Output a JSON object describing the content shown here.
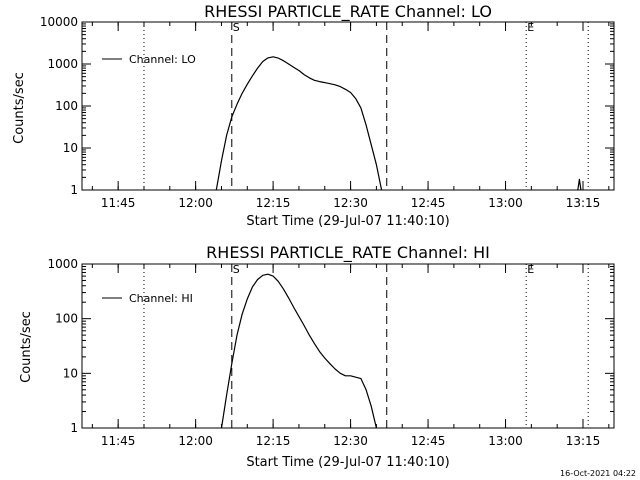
{
  "chart_data": [
    {
      "type": "line",
      "title": "RHESSI PARTICLE_RATE Channel: LO",
      "xlabel": "Start Time (29-Jul-07 11:40:10)",
      "ylabel": "Counts/sec",
      "yscale": "log",
      "ylim": [
        1,
        10000
      ],
      "xlim": [
        "11:38",
        "13:21"
      ],
      "x_ticks": [
        "11:45",
        "12:00",
        "12:15",
        "12:30",
        "12:45",
        "13:00",
        "13:15"
      ],
      "y_ticks": [
        "1",
        "10",
        "100",
        "1000",
        "10000"
      ],
      "legend": {
        "position": "top-left",
        "entries": [
          "Channel: LO"
        ]
      },
      "markers": [
        {
          "label": "S",
          "time": "12:07",
          "style": "dashed"
        },
        {
          "label": "",
          "time": "12:37",
          "style": "dashed"
        },
        {
          "label": "",
          "time": "11:50",
          "style": "dotted"
        },
        {
          "label": "E",
          "time": "13:04",
          "style": "dotted"
        },
        {
          "label": "",
          "time": "13:16",
          "style": "dotted"
        }
      ],
      "series": [
        {
          "name": "Channel: LO",
          "x": [
            "12:04",
            "12:05",
            "12:06",
            "12:07",
            "12:08",
            "12:09",
            "12:10",
            "12:11",
            "12:12",
            "12:13",
            "12:14",
            "12:15",
            "12:16",
            "12:17",
            "12:18",
            "12:19",
            "12:20",
            "12:21",
            "12:22",
            "12:23",
            "12:24",
            "12:25",
            "12:26",
            "12:27",
            "12:28",
            "12:29",
            "12:30",
            "12:31",
            "12:32",
            "12:33",
            "12:34",
            "12:35",
            "12:36"
          ],
          "y": [
            1,
            5,
            20,
            55,
            110,
            200,
            330,
            520,
            800,
            1150,
            1400,
            1480,
            1380,
            1200,
            1000,
            830,
            700,
            560,
            470,
            410,
            380,
            360,
            340,
            320,
            290,
            250,
            210,
            150,
            90,
            35,
            12,
            4,
            1
          ]
        },
        {
          "name": "",
          "x": [
            "13:14",
            "13:14.3",
            "13:14.6"
          ],
          "y": [
            1,
            1.8,
            1
          ]
        }
      ]
    },
    {
      "type": "line",
      "title": "RHESSI PARTICLE_RATE Channel: HI",
      "xlabel": "Start Time (29-Jul-07 11:40:10)",
      "ylabel": "Counts/sec",
      "yscale": "log",
      "ylim": [
        1,
        1000
      ],
      "xlim": [
        "11:38",
        "13:21"
      ],
      "x_ticks": [
        "11:45",
        "12:00",
        "12:15",
        "12:30",
        "12:45",
        "13:00",
        "13:15"
      ],
      "y_ticks": [
        "1",
        "10",
        "100",
        "1000"
      ],
      "legend": {
        "position": "top-left",
        "entries": [
          "Channel: HI"
        ]
      },
      "markers": [
        {
          "label": "S",
          "time": "12:07",
          "style": "dashed"
        },
        {
          "label": "",
          "time": "12:37",
          "style": "dashed"
        },
        {
          "label": "",
          "time": "11:50",
          "style": "dotted"
        },
        {
          "label": "E",
          "time": "13:04",
          "style": "dotted"
        },
        {
          "label": "",
          "time": "13:16",
          "style": "dotted"
        }
      ],
      "series": [
        {
          "name": "Channel: HI",
          "x": [
            "12:05",
            "12:06",
            "12:07",
            "12:08",
            "12:09",
            "12:10",
            "12:11",
            "12:12",
            "12:13",
            "12:14",
            "12:15",
            "12:16",
            "12:17",
            "12:18",
            "12:19",
            "12:20",
            "12:21",
            "12:22",
            "12:23",
            "12:24",
            "12:25",
            "12:26",
            "12:27",
            "12:28",
            "12:29",
            "12:30",
            "12:31",
            "12:32",
            "12:33",
            "12:34",
            "12:35"
          ],
          "y": [
            1,
            4,
            15,
            50,
            120,
            230,
            380,
            520,
            620,
            650,
            600,
            480,
            350,
            240,
            160,
            110,
            75,
            50,
            35,
            25,
            19,
            15,
            12,
            10,
            9,
            9,
            8.5,
            8,
            5,
            2.5,
            1
          ]
        }
      ]
    }
  ],
  "footer": {
    "timestamp": "16-Oct-2021 04:22"
  }
}
